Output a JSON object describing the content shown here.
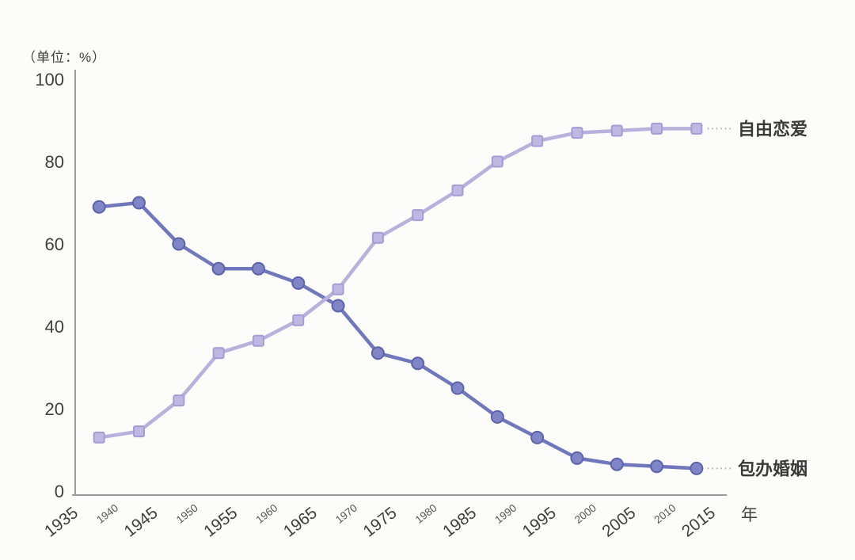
{
  "chart_data": {
    "type": "line",
    "title": "",
    "unit_label": "（单位：%）",
    "x_axis_suffix": "年",
    "xlim": [
      1935,
      2015
    ],
    "ylim": [
      0,
      100
    ],
    "grid": false,
    "x_ticks": [
      1935,
      1940,
      1945,
      1950,
      1955,
      1960,
      1965,
      1970,
      1975,
      1980,
      1985,
      1990,
      1995,
      2000,
      2005,
      2010,
      2015
    ],
    "y_ticks": [
      0,
      20,
      40,
      60,
      80,
      100
    ],
    "x": [
      1938,
      1943,
      1948,
      1953,
      1958,
      1963,
      1968,
      1973,
      1978,
      1983,
      1988,
      1993,
      1998,
      2003,
      2008,
      2013
    ],
    "series": [
      {
        "name": "自由恋爱",
        "marker": "square",
        "line_color": "#b7b1dc",
        "marker_fill": "#beb8e2",
        "marker_stroke": "#a49cd2",
        "values": [
          13,
          14.5,
          22,
          33.5,
          36.5,
          41.5,
          49,
          61.5,
          67,
          73,
          80,
          85,
          87,
          87.5,
          88,
          88
        ]
      },
      {
        "name": "包办婚姻",
        "marker": "circle",
        "line_color": "#7177bd",
        "marker_fill": "#7f85c7",
        "marker_stroke": "#5c63ab",
        "values": [
          69,
          70,
          60,
          54,
          54,
          50.5,
          45,
          33.5,
          31,
          25,
          18,
          13,
          8,
          6.5,
          6,
          5.5
        ]
      }
    ],
    "legend_position": "labels-at-line-ends",
    "leader_style": "dotted"
  }
}
